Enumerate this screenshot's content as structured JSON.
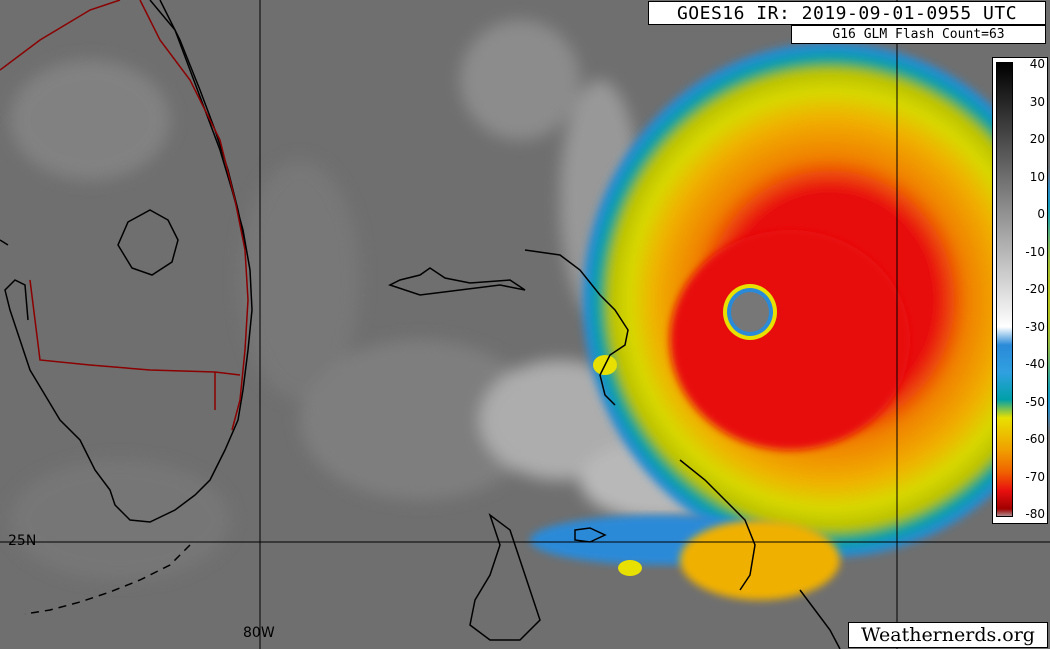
{
  "title": "GOES16 IR: 2019-09-01-0955 UTC",
  "flash_count": "G16 GLM Flash Count=63",
  "credit": "Weathernerds.org",
  "grid_labels": {
    "latitude": "25N",
    "longitude": "80W"
  },
  "colorbar": {
    "unit_ticks": [
      "40",
      "30",
      "20",
      "10",
      "0",
      "-10",
      "-20",
      "-30",
      "-40",
      "-50",
      "-60",
      "-70",
      "-80"
    ],
    "colors": {
      "warm_gray": "#000000",
      "light": "#ffffff",
      "blue": "#2a8ad8",
      "teal": "#00a0a8",
      "yellow": "#e8e000",
      "orange": "#f0a000",
      "red": "#e81010",
      "dark_red": "#a00000"
    }
  },
  "features": {
    "storm_name": "",
    "land_borders_color": "#000000",
    "state_border_color": "#8b0000"
  }
}
